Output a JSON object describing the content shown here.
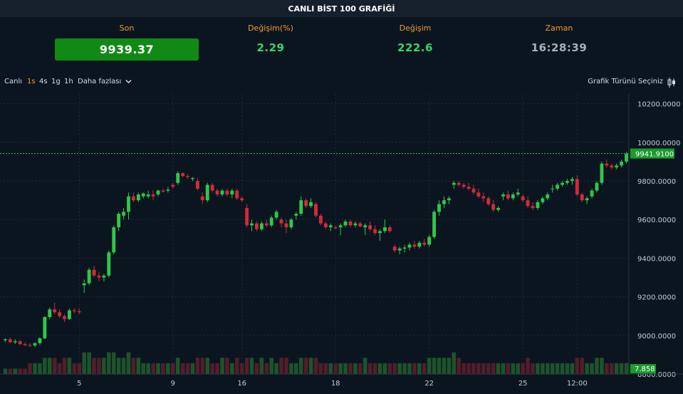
{
  "header": {
    "title": "CANLI BİST 100 GRAFİĞİ"
  },
  "stats": {
    "son": {
      "label": "Son",
      "value": "9939.37"
    },
    "degisim_pct": {
      "label": "Değişim(%)",
      "value": "2.29"
    },
    "degisim": {
      "label": "Değişim",
      "value": "222.6"
    },
    "zaman": {
      "label": "Zaman",
      "value": "16:28:39"
    }
  },
  "toolbar": {
    "live": "Canlı",
    "intervals": [
      "1s",
      "4s",
      "1g",
      "1h"
    ],
    "active_interval": "1s",
    "more": "Daha fazlası",
    "chart_type": "Grafik Türünü Seçiniz"
  },
  "colors": {
    "up": "#2fc74a",
    "down": "#d12b3a",
    "accent": "#f39c2c",
    "son_bg": "#108a14"
  },
  "chart_data": {
    "type": "candlestick",
    "last_price_label": "9941.9100",
    "last_price": 9941.91,
    "volume_label": "7.858",
    "ylim": [
      8800,
      10250
    ],
    "y_ticks": [
      {
        "value": 10200,
        "label": "10200.0000"
      },
      {
        "value": 10000,
        "label": "10000.0000"
      },
      {
        "value": 9800,
        "label": "9800.0000"
      },
      {
        "value": 9600,
        "label": "9600.0000"
      },
      {
        "value": 9400,
        "label": "9400.0000"
      },
      {
        "value": 9200,
        "label": "9200.0000"
      },
      {
        "value": 9000,
        "label": "9000.0000"
      },
      {
        "value": 8800,
        "label": "8800.0000"
      }
    ],
    "x_ticks": [
      {
        "index": 15,
        "label": "5"
      },
      {
        "index": 34,
        "label": "9"
      },
      {
        "index": 48,
        "label": "16"
      },
      {
        "index": 67,
        "label": "18"
      },
      {
        "index": 86,
        "label": "22"
      },
      {
        "index": 105,
        "label": "25"
      },
      {
        "index": 116,
        "label": "12:00"
      }
    ],
    "candles": [
      [
        8975,
        8985,
        8965,
        8980,
        1
      ],
      [
        8980,
        8990,
        8960,
        8965,
        1
      ],
      [
        8965,
        8980,
        8955,
        8970,
        1
      ],
      [
        8970,
        8975,
        8950,
        8955,
        1
      ],
      [
        8955,
        8965,
        8945,
        8950,
        1
      ],
      [
        8950,
        8960,
        8940,
        8948,
        2
      ],
      [
        8948,
        8965,
        8940,
        8960,
        2
      ],
      [
        8960,
        8990,
        8950,
        8985,
        2
      ],
      [
        8985,
        9100,
        8980,
        9095,
        3
      ],
      [
        9095,
        9145,
        9085,
        9135,
        3
      ],
      [
        9135,
        9170,
        9110,
        9120,
        3
      ],
      [
        9120,
        9135,
        9090,
        9100,
        2
      ],
      [
        9100,
        9110,
        9070,
        9085,
        3
      ],
      [
        9085,
        9140,
        9080,
        9130,
        3
      ],
      [
        9130,
        9140,
        9115,
        9125,
        2
      ],
      [
        9125,
        9140,
        9110,
        9120,
        2
      ],
      [
        9260,
        9290,
        9220,
        9270,
        4
      ],
      [
        9270,
        9350,
        9260,
        9340,
        4
      ],
      [
        9340,
        9360,
        9300,
        9310,
        3
      ],
      [
        9310,
        9330,
        9280,
        9300,
        3
      ],
      [
        9300,
        9320,
        9280,
        9310,
        3
      ],
      [
        9310,
        9440,
        9300,
        9430,
        4
      ],
      [
        9430,
        9570,
        9420,
        9560,
        4
      ],
      [
        9560,
        9640,
        9540,
        9630,
        3
      ],
      [
        9620,
        9660,
        9600,
        9640,
        3
      ],
      [
        9640,
        9740,
        9600,
        9720,
        4
      ],
      [
        9720,
        9740,
        9690,
        9700,
        3
      ],
      [
        9700,
        9740,
        9690,
        9730,
        3
      ],
      [
        9720,
        9740,
        9710,
        9735,
        2
      ],
      [
        9720,
        9750,
        9710,
        9730,
        2
      ],
      [
        9730,
        9750,
        9700,
        9720,
        2
      ],
      [
        9730,
        9755,
        9720,
        9750,
        2
      ],
      [
        9750,
        9760,
        9740,
        9745,
        2
      ],
      [
        9750,
        9770,
        9740,
        9755,
        2
      ],
      [
        9780,
        9790,
        9760,
        9770,
        2
      ],
      [
        9790,
        9850,
        9780,
        9840,
        3
      ],
      [
        9840,
        9845,
        9820,
        9825,
        2
      ],
      [
        9825,
        9835,
        9810,
        9820,
        2
      ],
      [
        9810,
        9820,
        9800,
        9815,
        2
      ],
      [
        9800,
        9815,
        9750,
        9760,
        3
      ],
      [
        9720,
        9740,
        9680,
        9700,
        3
      ],
      [
        9700,
        9790,
        9690,
        9780,
        3
      ],
      [
        9780,
        9790,
        9740,
        9750,
        2
      ],
      [
        9750,
        9760,
        9720,
        9730,
        2
      ],
      [
        9730,
        9760,
        9720,
        9750,
        3
      ],
      [
        9750,
        9760,
        9720,
        9730,
        3
      ],
      [
        9730,
        9760,
        9710,
        9750,
        2
      ],
      [
        9750,
        9760,
        9700,
        9710,
        3
      ],
      [
        9710,
        9720,
        9690,
        9700,
        2
      ],
      [
        9660,
        9680,
        9560,
        9570,
        3
      ],
      [
        9570,
        9600,
        9540,
        9580,
        3
      ],
      [
        9580,
        9590,
        9540,
        9550,
        2
      ],
      [
        9550,
        9590,
        9540,
        9580,
        3
      ],
      [
        9580,
        9600,
        9560,
        9570,
        2
      ],
      [
        9570,
        9620,
        9560,
        9610,
        3
      ],
      [
        9610,
        9650,
        9600,
        9640,
        2
      ],
      [
        9600,
        9610,
        9560,
        9580,
        3
      ],
      [
        9580,
        9600,
        9530,
        9560,
        3
      ],
      [
        9560,
        9610,
        9550,
        9600,
        2
      ],
      [
        9620,
        9640,
        9600,
        9630,
        2
      ],
      [
        9630,
        9720,
        9620,
        9700,
        3
      ],
      [
        9700,
        9710,
        9660,
        9670,
        3
      ],
      [
        9670,
        9710,
        9660,
        9690,
        3
      ],
      [
        9680,
        9690,
        9610,
        9620,
        3
      ],
      [
        9620,
        9630,
        9570,
        9580,
        2
      ],
      [
        9580,
        9590,
        9550,
        9560,
        2
      ],
      [
        9560,
        9580,
        9540,
        9570,
        2
      ],
      [
        9560,
        9570,
        9550,
        9555,
        2
      ],
      [
        9560,
        9580,
        9520,
        9570,
        2
      ],
      [
        9570,
        9600,
        9560,
        9590,
        2
      ],
      [
        9590,
        9600,
        9560,
        9570,
        2
      ],
      [
        9570,
        9590,
        9560,
        9580,
        2
      ],
      [
        9580,
        9590,
        9560,
        9565,
        2
      ],
      [
        9560,
        9580,
        9520,
        9570,
        3
      ],
      [
        9570,
        9590,
        9540,
        9550,
        2
      ],
      [
        9550,
        9570,
        9520,
        9530,
        2
      ],
      [
        9530,
        9550,
        9490,
        9540,
        2
      ],
      [
        9540,
        9600,
        9530,
        9560,
        2
      ],
      [
        9560,
        9570,
        9530,
        9540,
        2
      ],
      [
        9460,
        9470,
        9430,
        9440,
        2
      ],
      [
        9440,
        9460,
        9420,
        9450,
        2
      ],
      [
        9450,
        9470,
        9430,
        9455,
        2
      ],
      [
        9455,
        9480,
        9440,
        9470,
        2
      ],
      [
        9470,
        9490,
        9450,
        9460,
        2
      ],
      [
        9460,
        9490,
        9450,
        9480,
        2
      ],
      [
        9480,
        9500,
        9460,
        9470,
        2
      ],
      [
        9470,
        9520,
        9460,
        9510,
        3
      ],
      [
        9510,
        9650,
        9500,
        9640,
        3
      ],
      [
        9640,
        9700,
        9620,
        9680,
        3
      ],
      [
        9680,
        9720,
        9660,
        9700,
        3
      ],
      [
        9700,
        9720,
        9680,
        9710,
        3
      ],
      [
        9780,
        9800,
        9760,
        9790,
        4
      ],
      [
        9790,
        9800,
        9770,
        9780,
        3
      ],
      [
        9780,
        9790,
        9760,
        9770,
        2
      ],
      [
        9770,
        9790,
        9750,
        9760,
        2
      ],
      [
        9760,
        9780,
        9730,
        9740,
        2
      ],
      [
        9740,
        9760,
        9710,
        9720,
        2
      ],
      [
        9720,
        9740,
        9690,
        9710,
        2
      ],
      [
        9710,
        9720,
        9670,
        9680,
        2
      ],
      [
        9680,
        9700,
        9640,
        9650,
        2
      ],
      [
        9650,
        9670,
        9640,
        9660,
        2
      ],
      [
        9720,
        9740,
        9700,
        9730,
        2
      ],
      [
        9730,
        9750,
        9700,
        9710,
        2
      ],
      [
        9710,
        9740,
        9700,
        9730,
        2
      ],
      [
        9730,
        9760,
        9720,
        9740,
        2
      ],
      [
        9720,
        9730,
        9690,
        9700,
        2
      ],
      [
        9700,
        9720,
        9660,
        9670,
        3
      ],
      [
        9670,
        9690,
        9650,
        9660,
        2
      ],
      [
        9660,
        9700,
        9650,
        9690,
        2
      ],
      [
        9690,
        9720,
        9680,
        9710,
        2
      ],
      [
        9710,
        9740,
        9700,
        9730,
        2
      ],
      [
        9760,
        9780,
        9740,
        9760,
        2
      ],
      [
        9760,
        9790,
        9750,
        9780,
        2
      ],
      [
        9780,
        9800,
        9770,
        9790,
        2
      ],
      [
        9790,
        9810,
        9780,
        9800,
        2
      ],
      [
        9800,
        9820,
        9780,
        9810,
        2
      ],
      [
        9810,
        9830,
        9720,
        9730,
        3
      ],
      [
        9730,
        9740,
        9690,
        9700,
        3
      ],
      [
        9700,
        9720,
        9680,
        9710,
        2
      ],
      [
        9720,
        9760,
        9710,
        9750,
        2
      ],
      [
        9750,
        9800,
        9740,
        9790,
        3
      ],
      [
        9790,
        9900,
        9780,
        9890,
        3
      ],
      [
        9890,
        9910,
        9870,
        9880,
        2
      ],
      [
        9880,
        9890,
        9860,
        9870,
        2
      ],
      [
        9870,
        9890,
        9860,
        9880,
        2
      ],
      [
        9880,
        9910,
        9870,
        9900,
        2
      ],
      [
        9900,
        9950,
        9890,
        9940,
        2
      ]
    ]
  }
}
